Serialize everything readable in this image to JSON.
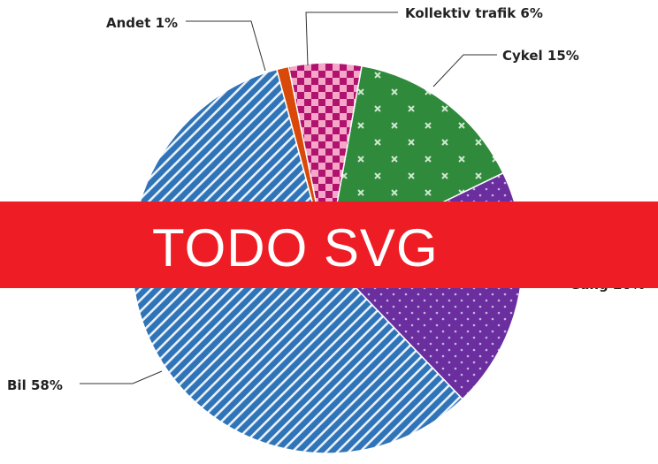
{
  "chart_data": {
    "type": "pie",
    "slices": [
      {
        "label": "Andet 1%",
        "value": 1,
        "color": "#d94a0a"
      },
      {
        "label": "Kollektiv trafik 6%",
        "value": 6,
        "color": "#e0447f"
      },
      {
        "label": "Cykel 15%",
        "value": 15,
        "color": "#2f8a3c"
      },
      {
        "label": "Gang 20%",
        "value": 20,
        "color": "#6a2e9e"
      },
      {
        "label": "Bil 58%",
        "value": 58,
        "color": "#2f74b8"
      }
    ]
  },
  "overlay": {
    "text": "TODO SVG",
    "color": "#ee1c24"
  }
}
